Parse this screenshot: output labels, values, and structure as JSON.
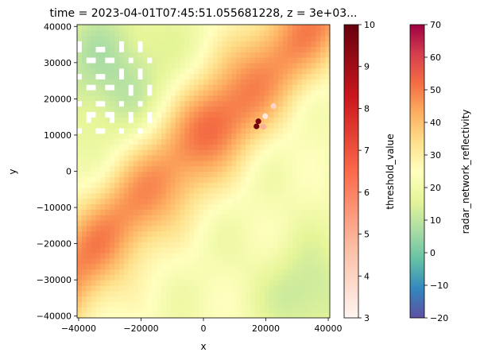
{
  "chart_data": {
    "type": "heatmap",
    "title": "time = 2023-04-01T07:45:51.055681228, z = 3e+03...",
    "xlabel": "x",
    "ylabel": "y",
    "xlim": [
      -40500,
      40500
    ],
    "ylim": [
      -40500,
      40500
    ],
    "x_ticks": [
      -40000,
      -20000,
      0,
      20000,
      40000
    ],
    "x_tick_labels": [
      "−40000",
      "−20000",
      "0",
      "20000",
      "40000"
    ],
    "y_ticks": [
      -40000,
      -30000,
      -20000,
      -10000,
      0,
      10000,
      20000,
      30000,
      40000
    ],
    "y_tick_labels": [
      "−40000",
      "−30000",
      "−20000",
      "−10000",
      "0",
      "10000",
      "20000",
      "30000",
      "40000"
    ],
    "grid": false,
    "field": {
      "name": "radar_network_reflectivity",
      "colormap": "Spectral_r",
      "vmin": -20,
      "vmax": 70,
      "structure": "Diagonal band of high reflectivity (about 45-55) running from lower-left to upper-right across the domain, surrounded by 20-35 values; lower values (about 5-10) in the upper-left and lower-right corners; missing data (white) patches near x = -40000..-15000, y = 10000..38000."
    },
    "points": {
      "name": "threshold_value",
      "colormap": "Reds",
      "vmin": 3,
      "vmax": 10,
      "data": [
        {
          "x": 22500,
          "y": 18000,
          "value": 4.0
        },
        {
          "x": 19800,
          "y": 15200,
          "value": 3.4
        },
        {
          "x": 19200,
          "y": 12300,
          "value": 5.0
        },
        {
          "x": 17600,
          "y": 13800,
          "value": 9.6
        },
        {
          "x": 17000,
          "y": 12400,
          "value": 9.8
        }
      ]
    },
    "colorbars": [
      {
        "label": "threshold_value",
        "min": 3,
        "max": 10,
        "ticks": [
          3,
          4,
          5,
          6,
          7,
          8,
          9,
          10
        ],
        "tick_labels": [
          "3",
          "4",
          "5",
          "6",
          "7",
          "8",
          "9",
          "10"
        ]
      },
      {
        "label": "radar_network_reflectivity",
        "min": -20,
        "max": 70,
        "ticks": [
          -20,
          -10,
          0,
          10,
          20,
          30,
          40,
          50,
          60,
          70
        ],
        "tick_labels": [
          "−20",
          "−10",
          "0",
          "10",
          "20",
          "30",
          "40",
          "50",
          "60",
          "70"
        ]
      }
    ]
  }
}
